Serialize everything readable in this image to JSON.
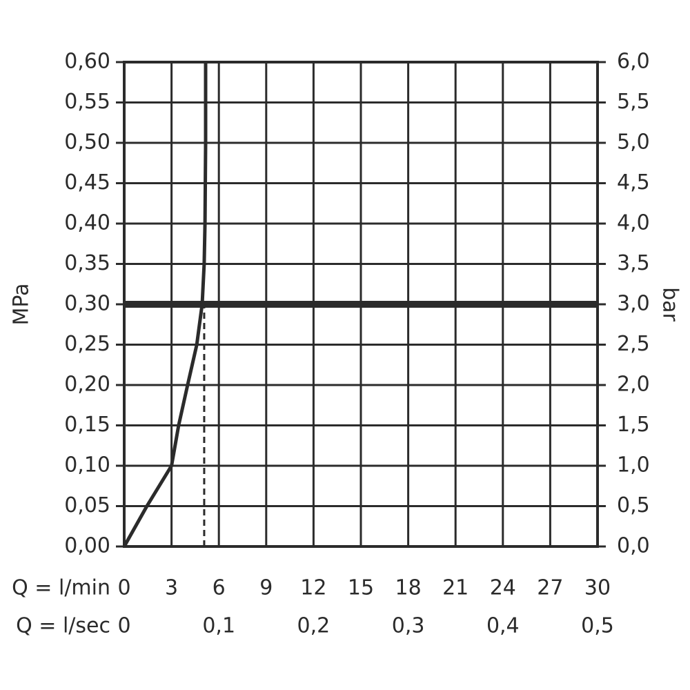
{
  "chart_data": {
    "type": "line",
    "ylabel": "MPa",
    "y2label": "bar",
    "xlabel": "Q = l/min",
    "x2label": "Q = l/sec",
    "xlim": [
      0,
      30
    ],
    "xticks": [
      0,
      3,
      6,
      9,
      12,
      15,
      18,
      21,
      24,
      27,
      30
    ],
    "x2lim": [
      0,
      0.5
    ],
    "x2ticks": [
      0,
      {
        "value": 0.1,
        "label": "0,1"
      },
      {
        "value": 0.2,
        "label": "0,2"
      },
      {
        "value": 0.3,
        "label": "0,3"
      },
      {
        "value": 0.4,
        "label": "0,4"
      },
      {
        "value": 0.5,
        "label": "0,5"
      }
    ],
    "ylim": [
      0,
      0.6
    ],
    "yticks": [
      {
        "value": 0,
        "label": "0,00"
      },
      {
        "value": 0.05,
        "label": "0,05"
      },
      {
        "value": 0.1,
        "label": "0,10"
      },
      {
        "value": 0.15,
        "label": "0,15"
      },
      {
        "value": 0.2,
        "label": "0,20"
      },
      {
        "value": 0.25,
        "label": "0,25"
      },
      {
        "value": 0.3,
        "label": "0,30"
      },
      {
        "value": 0.35,
        "label": "0,35"
      },
      {
        "value": 0.4,
        "label": "0,40"
      },
      {
        "value": 0.45,
        "label": "0,45"
      },
      {
        "value": 0.5,
        "label": "0,50"
      },
      {
        "value": 0.55,
        "label": "0,55"
      },
      {
        "value": 0.6,
        "label": "0,60"
      }
    ],
    "y2lim": [
      0,
      6
    ],
    "y2ticks": [
      {
        "value": 0,
        "label": "0,0"
      },
      {
        "value": 0.5,
        "label": "0,5"
      },
      {
        "value": 1,
        "label": "1,0"
      },
      {
        "value": 1.5,
        "label": "1,5"
      },
      {
        "value": 2,
        "label": "2,0"
      },
      {
        "value": 2.5,
        "label": "2,5"
      },
      {
        "value": 3,
        "label": "3,0"
      },
      {
        "value": 3.5,
        "label": "3,5"
      },
      {
        "value": 4,
        "label": "4,0"
      },
      {
        "value": 4.5,
        "label": "4,5"
      },
      {
        "value": 5,
        "label": "5,0"
      },
      {
        "value": 5.5,
        "label": "5,5"
      },
      {
        "value": 6,
        "label": "6,0"
      }
    ],
    "grid": true,
    "series": [
      {
        "color": "#2b2b2b",
        "x": [
          0,
          1.44,
          3.0,
          3.45,
          4.02,
          4.6,
          4.94,
          5.07,
          5.12,
          5.16,
          5.16
        ],
        "values": [
          0,
          0.05,
          0.1,
          0.15,
          0.2,
          0.25,
          0.3,
          0.35,
          0.4,
          0.5,
          0.6
        ]
      }
    ],
    "hline": {
      "value": 0.3,
      "color": "#2b2b2b"
    },
    "vline": {
      "value": 5.07,
      "ymax": 0.3,
      "dashed": true,
      "color": "#2b2b2b"
    }
  }
}
